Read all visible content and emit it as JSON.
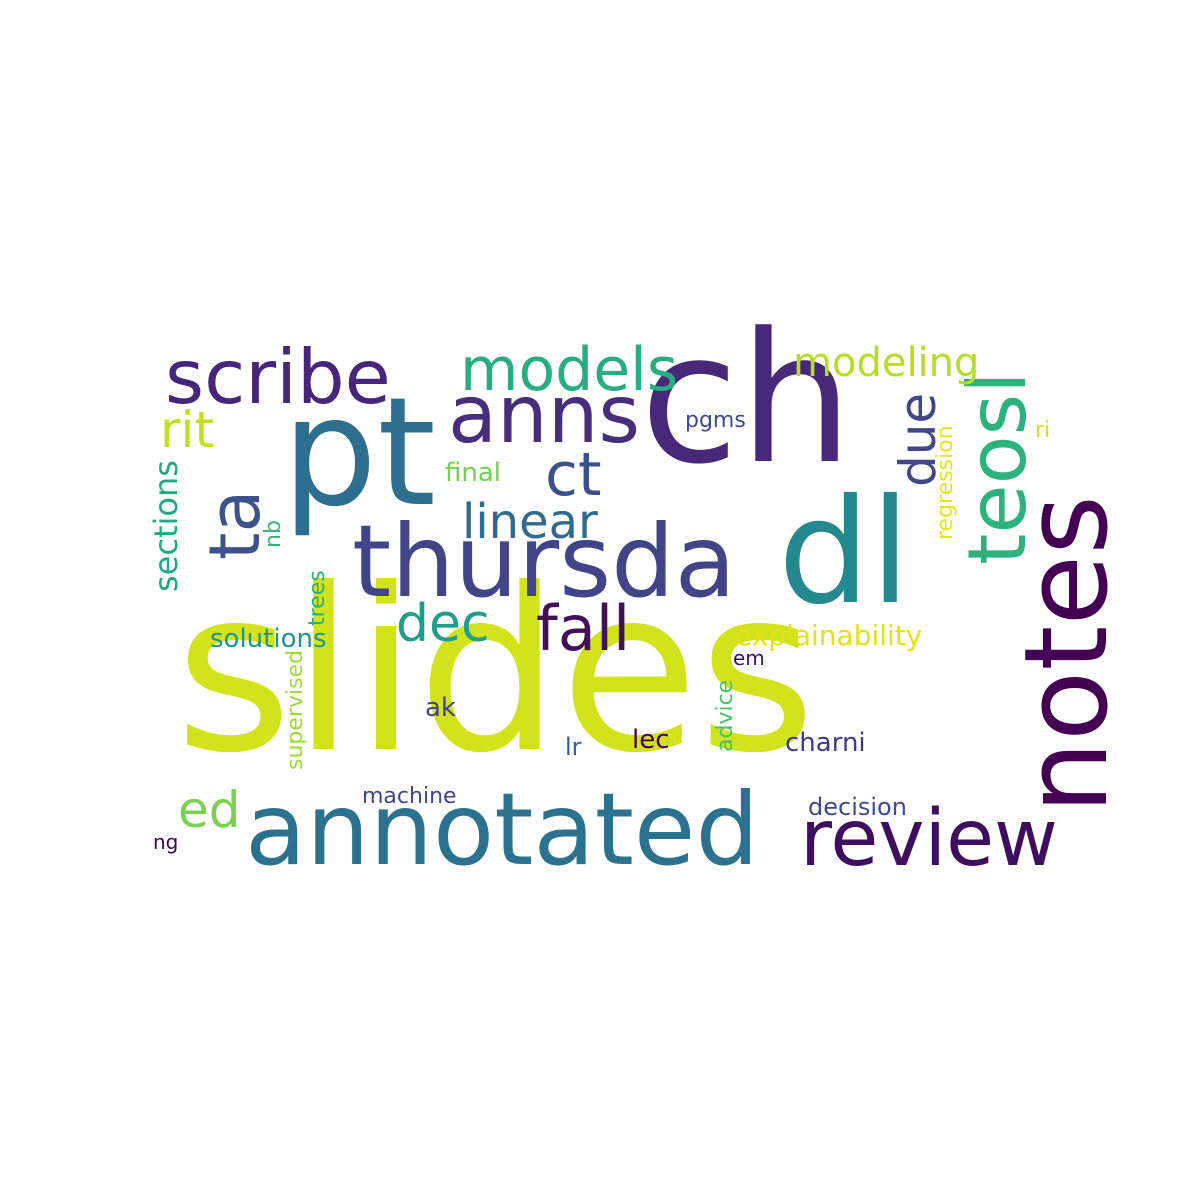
{
  "word_cloud": {
    "words": [
      {
        "text": "slides",
        "color": "#d2e21b"
      },
      {
        "text": "ch",
        "color": "#482878"
      },
      {
        "text": "pt",
        "color": "#2e6e8e"
      },
      {
        "text": "dl",
        "color": "#23898e"
      },
      {
        "text": "annotated",
        "color": "#2c728e"
      },
      {
        "text": "thursda",
        "color": "#414487"
      },
      {
        "text": "notes",
        "color": "#440154"
      },
      {
        "text": "review",
        "color": "#3e0f5c"
      },
      {
        "text": "scribe",
        "color": "#46257a"
      },
      {
        "text": "anns",
        "color": "#472d7b"
      },
      {
        "text": "teosl",
        "color": "#2db27d"
      },
      {
        "text": "models",
        "color": "#27ad81"
      },
      {
        "text": "ta",
        "color": "#3b528b"
      },
      {
        "text": "fall",
        "color": "#440f57"
      },
      {
        "text": "ct",
        "color": "#3b528b"
      },
      {
        "text": "linear",
        "color": "#2f6b8e"
      },
      {
        "text": "dec",
        "color": "#1f9e89"
      },
      {
        "text": "due",
        "color": "#3f4788"
      },
      {
        "text": "modeling",
        "color": "#b5de2b"
      },
      {
        "text": "rit",
        "color": "#c2df23"
      },
      {
        "text": "ed",
        "color": "#7ad151"
      },
      {
        "text": "sections",
        "color": "#22a884"
      },
      {
        "text": "explainability",
        "color": "#dfe318"
      },
      {
        "text": "final",
        "color": "#75d054"
      },
      {
        "text": "solutions",
        "color": "#1f958b"
      },
      {
        "text": "regression",
        "color": "#e7e419"
      },
      {
        "text": "supervised",
        "color": "#a0da39"
      },
      {
        "text": "charni",
        "color": "#443983"
      },
      {
        "text": "decision",
        "color": "#3e4a89"
      },
      {
        "text": "machine",
        "color": "#3f4889"
      },
      {
        "text": "pgms",
        "color": "#3e4c8a"
      },
      {
        "text": "advice",
        "color": "#4ac16d"
      },
      {
        "text": "trees",
        "color": "#2ab07f"
      },
      {
        "text": "ak",
        "color": "#424086"
      },
      {
        "text": "lec",
        "color": "#440154"
      },
      {
        "text": "lr",
        "color": "#355f8d"
      },
      {
        "text": "em",
        "color": "#3b0f70"
      },
      {
        "text": "nb",
        "color": "#35b779"
      },
      {
        "text": "ri",
        "color": "#d8e219"
      },
      {
        "text": "ng",
        "color": "#3e0751"
      }
    ]
  }
}
